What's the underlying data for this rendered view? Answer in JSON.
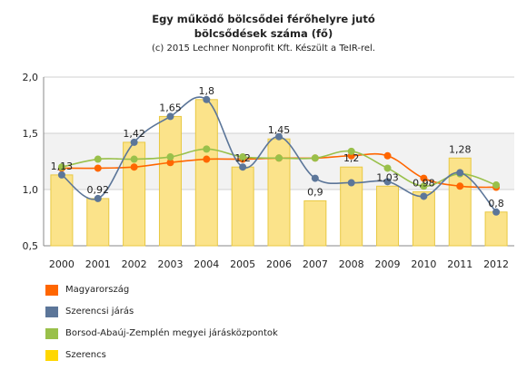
{
  "chart_data": {
    "type": "bar+line",
    "title_line1": "Egy működő bölcsődei férőhelyre jutó",
    "title_line2": "bölcsődések száma (fő)",
    "subtitle": "(c) 2015 Lechner Nonprofit Kft. Készült a TeIR-rel.",
    "categories": [
      "2000",
      "2001",
      "2002",
      "2003",
      "2004",
      "2005",
      "2006",
      "2007",
      "2008",
      "2009",
      "2010",
      "2011",
      "2012"
    ],
    "ylim": [
      0.5,
      2.0
    ],
    "yticks": [
      "0,5",
      "1,0",
      "1,5",
      "2,0"
    ],
    "ytick_values": [
      0.5,
      1.0,
      1.5,
      2.0
    ],
    "grid": true,
    "legend_position": "bottom-left",
    "bar_series": {
      "name": "Szerencs",
      "color": "#ffd700",
      "values": [
        1.13,
        0.92,
        1.42,
        1.65,
        1.8,
        1.2,
        1.45,
        0.9,
        1.2,
        1.03,
        0.98,
        1.28,
        0.8
      ],
      "labels": [
        "1,13",
        "0,92",
        "1,42",
        "1,65",
        "1,8",
        "1,2",
        "1,45",
        "0,9",
        "1,2",
        "1,03",
        "0,98",
        "1,28",
        "0,8"
      ]
    },
    "line_series": [
      {
        "name": "Magyarország",
        "color": "#ff6600",
        "values": [
          1.19,
          1.19,
          1.2,
          1.24,
          1.27,
          1.27,
          1.28,
          1.28,
          1.3,
          1.3,
          1.1,
          1.03,
          1.02
        ]
      },
      {
        "name": "Szerencsi járás",
        "color": "#5c7699",
        "values": [
          1.13,
          0.92,
          1.42,
          1.65,
          1.8,
          1.2,
          1.47,
          1.1,
          1.06,
          1.07,
          0.94,
          1.15,
          0.8
        ]
      },
      {
        "name": "Borsod-Abaúj-Zemplén megyei járásközpontok",
        "color": "#99c04a",
        "values": [
          1.2,
          1.27,
          1.27,
          1.29,
          1.36,
          1.29,
          1.28,
          1.28,
          1.34,
          1.19,
          1.03,
          1.14,
          1.04
        ]
      }
    ],
    "legend": [
      "Magyarország",
      "Szerencsi járás",
      "Borsod-Abaúj-Zemplén megyei járásközpontok",
      "Szerencs"
    ]
  }
}
